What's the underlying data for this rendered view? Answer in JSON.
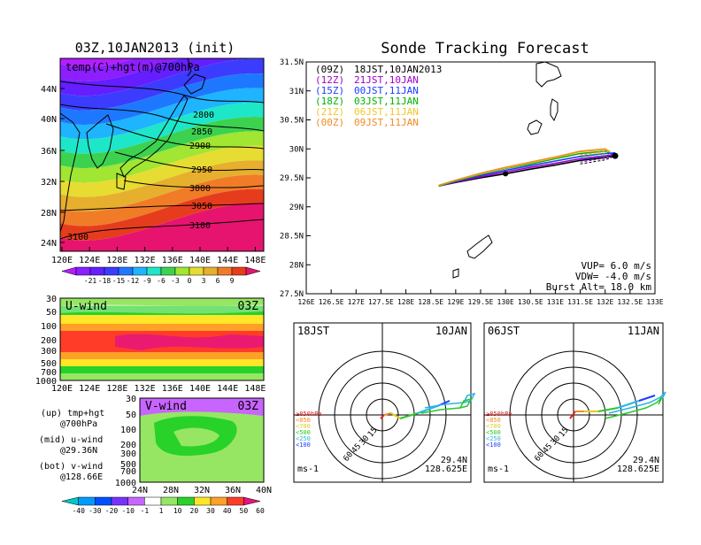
{
  "left": {
    "title": "03Z,10JAN2013 (init)",
    "map_label": "temp(C)+hgt(m)@700hPa",
    "lat_labels": [
      "44N",
      "40N",
      "36N",
      "32N",
      "28N",
      "24N"
    ],
    "lon_labels": [
      "120E",
      "124E",
      "128E",
      "132E",
      "136E",
      "140E",
      "144E",
      "148E"
    ],
    "contour_labels": [
      "2800",
      "2850",
      "2900",
      "2950",
      "3000",
      "3050",
      "3100",
      "3100"
    ],
    "temp_colorbar_ticks": [
      "-21",
      "-18",
      "-15",
      "-12",
      "-9",
      "-6",
      "-3",
      "0",
      "3",
      "6",
      "9"
    ],
    "uwind_label": "U-wind",
    "uwind_time": "03Z",
    "vwind_label": "V-wind",
    "vwind_time": "03Z",
    "pressure_labels": [
      "30",
      "50",
      "100",
      "200",
      "300",
      "500",
      "700",
      "1000"
    ],
    "vwind_lat_labels": [
      "24N",
      "28N",
      "32N",
      "36N",
      "40N"
    ],
    "wind_colorbar_ticks": [
      "-40",
      "-30",
      "-20",
      "-10",
      "-1",
      "1",
      "10",
      "20",
      "30",
      "40",
      "50",
      "60"
    ],
    "legend": {
      "up": "(up) tmp+hgt",
      "up2": "@700hPa",
      "mid": "(mid) u-wind",
      "mid2": "@29.36N",
      "bot": "(bot) v-wind",
      "bot2": "@128.66E"
    },
    "colors": {
      "temp": [
        "#b41eff",
        "#8c1eff",
        "#641eff",
        "#3c3cff",
        "#1e78ff",
        "#1eb4ff",
        "#1ee6c8",
        "#3cd250",
        "#a0e632",
        "#e6dc32",
        "#e6af2d",
        "#f07c28",
        "#e63c1e",
        "#e6146e"
      ],
      "wind": [
        "#00c8c8",
        "#009bff",
        "#0050ff",
        "#7832ff",
        "#c864ff",
        "#ffffff",
        "#96e664",
        "#28d228",
        "#ffe628",
        "#ffa028",
        "#ff3c28",
        "#e6147d"
      ]
    }
  },
  "right": {
    "title": "Sonde Tracking Forecast",
    "lat_labels": [
      "31.5N",
      "31N",
      "30.5N",
      "30N",
      "29.5N",
      "29N",
      "28.5N",
      "28N",
      "27.5N"
    ],
    "lon_labels": [
      "126E",
      "126.5E",
      "127E",
      "127.5E",
      "128E",
      "128.5E",
      "129E",
      "129.5E",
      "130E",
      "130.5E",
      "131E",
      "131.5E",
      "132E",
      "132.5E",
      "133E"
    ],
    "launches": [
      {
        "z": "(09Z)",
        "jst": "18JST,10JAN2013",
        "color": "#000000"
      },
      {
        "z": "(12Z)",
        "jst": "21JST,10JAN",
        "color": "#a000c8"
      },
      {
        "z": "(15Z)",
        "jst": "00JST,11JAN",
        "color": "#1e3cff"
      },
      {
        "z": "(18Z)",
        "jst": "03JST,11JAN",
        "color": "#00b400"
      },
      {
        "z": "(21Z)",
        "jst": "06JST,11JAN",
        "color": "#f0c828"
      },
      {
        "z": "(00Z)",
        "jst": "09JST,11JAN",
        "color": "#f08c28"
      }
    ],
    "params": {
      "vup": "VUP= 6.0 m/s",
      "vdw": "VDW= -4.0 m/s",
      "burst": "Burst Alt= 18.0 km"
    },
    "hodographs": [
      {
        "left_label": "18JST",
        "right_label": "10JAN",
        "lat": "29.4N",
        "lon": "128.625E",
        "unit": "ms-1"
      },
      {
        "left_label": "06JST",
        "right_label": "11JAN",
        "lat": "29.4N",
        "lon": "128.625E",
        "unit": "ms-1"
      }
    ],
    "hodo_ring_labels": [
      "15",
      "30",
      "45",
      "60"
    ],
    "hodo_level_legend": [
      {
        "text": "≥850hPa",
        "color": "#e61e1e"
      },
      {
        "text": "<850",
        "color": "#f08c28"
      },
      {
        "text": "<700",
        "color": "#e6c828"
      },
      {
        "text": "<500",
        "color": "#28c828"
      },
      {
        "text": "<250",
        "color": "#28b4e6"
      },
      {
        "text": "<100",
        "color": "#1e3cff"
      }
    ]
  },
  "chart_data": [
    {
      "type": "line",
      "title": "Sonde Tracking Forecast",
      "xlim": [
        126,
        133
      ],
      "ylim": [
        27.5,
        31.5
      ],
      "series": [
        {
          "name": "(09Z) 18JST,10JAN2013",
          "x": [
            128.66,
            129.0,
            129.5,
            130.0,
            130.5,
            131.0,
            131.5,
            132.0,
            132.2
          ],
          "y": [
            29.36,
            29.42,
            29.5,
            29.57,
            29.65,
            29.72,
            29.8,
            29.85,
            29.88
          ]
        },
        {
          "name": "(12Z) 21JST,10JAN",
          "x": [
            128.66,
            129.0,
            129.5,
            130.0,
            130.5,
            131.0,
            131.5,
            132.0,
            132.2
          ],
          "y": [
            29.36,
            29.43,
            29.52,
            29.6,
            29.68,
            29.75,
            29.83,
            29.88,
            29.9
          ]
        },
        {
          "name": "(15Z) 00JST,11JAN",
          "x": [
            128.66,
            129.0,
            129.5,
            130.0,
            130.5,
            131.0,
            131.5,
            132.0,
            132.2
          ],
          "y": [
            29.36,
            29.44,
            29.54,
            29.63,
            29.71,
            29.79,
            29.87,
            29.92,
            29.93
          ]
        },
        {
          "name": "(18Z) 03JST,11JAN",
          "x": [
            128.66,
            129.0,
            129.5,
            130.0,
            130.5,
            131.0,
            131.5,
            132.0,
            132.1
          ],
          "y": [
            29.36,
            29.45,
            29.56,
            29.66,
            29.74,
            29.83,
            29.92,
            29.96,
            29.95
          ]
        },
        {
          "name": "(21Z) 06JST,11JAN",
          "x": [
            128.66,
            129.0,
            129.5,
            130.0,
            130.5,
            131.0,
            131.5,
            132.0,
            132.1
          ],
          "y": [
            29.37,
            29.46,
            29.57,
            29.67,
            29.76,
            29.85,
            29.95,
            29.99,
            29.96
          ]
        },
        {
          "name": "(00Z) 09JST,11JAN",
          "x": [
            128.66,
            129.0,
            129.5,
            130.0,
            130.5,
            131.0,
            131.5,
            132.0,
            132.05
          ],
          "y": [
            29.37,
            29.46,
            29.58,
            29.68,
            29.77,
            29.86,
            29.96,
            30.0,
            29.97
          ]
        }
      ]
    }
  ]
}
